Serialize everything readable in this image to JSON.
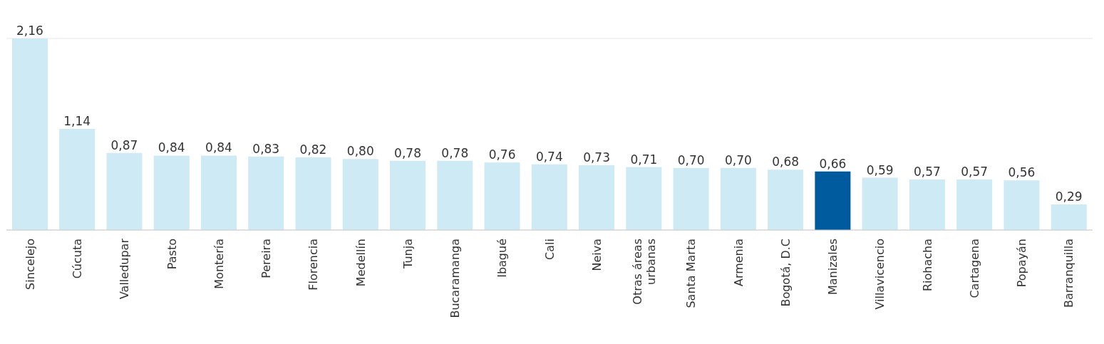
{
  "chart_data": {
    "type": "bar",
    "categories": [
      "Sincelejo",
      "Cúcuta",
      "Valledupar",
      "Pasto",
      "Montería",
      "Pereira",
      "Florencia",
      "Medellín",
      "Tunja",
      "Bucaramanga",
      "Ibagué",
      "Cali",
      "Neiva",
      "Otras áreas urbanas",
      "Santa Marta",
      "Armenia",
      "Bogotá, D.C",
      "Manizales",
      "Villavicencio",
      "Riohacha",
      "Cartagena",
      "Popayán",
      "Barranquilla"
    ],
    "values": [
      2.16,
      1.14,
      0.87,
      0.84,
      0.84,
      0.83,
      0.82,
      0.8,
      0.78,
      0.78,
      0.76,
      0.74,
      0.73,
      0.71,
      0.7,
      0.7,
      0.68,
      0.66,
      0.59,
      0.57,
      0.57,
      0.56,
      0.29
    ],
    "colors": [
      "#cdeaf5",
      "#cdeaf5",
      "#cdeaf5",
      "#cdeaf5",
      "#cdeaf5",
      "#cdeaf5",
      "#cdeaf5",
      "#cdeaf5",
      "#cdeaf5",
      "#cdeaf5",
      "#cdeaf5",
      "#cdeaf5",
      "#cdeaf5",
      "#cdeaf5",
      "#cdeaf5",
      "#cdeaf5",
      "#cdeaf5",
      "#005a9e",
      "#cdeaf5",
      "#cdeaf5",
      "#cdeaf5",
      "#cdeaf5",
      "#cdeaf5"
    ],
    "value_labels": [
      "2,16",
      "1,14",
      "0,87",
      "0,84",
      "0,84",
      "0,83",
      "0,82",
      "0,80",
      "0,78",
      "0,78",
      "0,76",
      "0,74",
      "0,73",
      "0,71",
      "0,70",
      "0,70",
      "0,68",
      "0,66",
      "0,59",
      "0,57",
      "0,57",
      "0,56",
      "0,29"
    ],
    "grid": "y",
    "tick_labels": "x"
  }
}
